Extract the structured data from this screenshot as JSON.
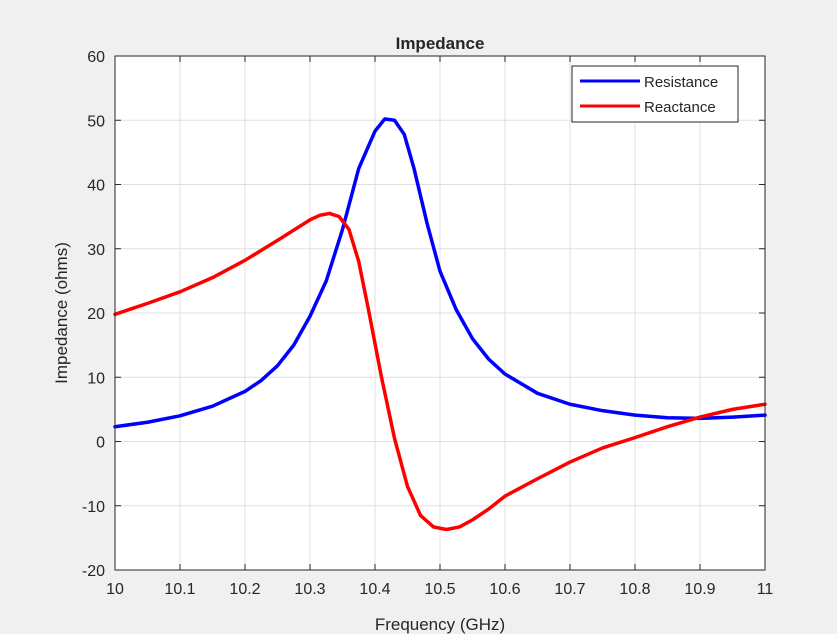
{
  "figure": {
    "background": "#f0f0f0"
  },
  "chart_data": {
    "type": "line",
    "title": "Impedance",
    "xlabel": "Frequency (GHz)",
    "ylabel": "Impedance (ohms)",
    "xlim": [
      10,
      11
    ],
    "ylim": [
      -20,
      60
    ],
    "xticks": [
      10,
      10.1,
      10.2,
      10.3,
      10.4,
      10.5,
      10.6,
      10.7,
      10.8,
      10.9,
      11
    ],
    "xtick_labels": [
      "10",
      "10.1",
      "10.2",
      "10.3",
      "10.4",
      "10.5",
      "10.6",
      "10.7",
      "10.8",
      "10.9",
      "11"
    ],
    "yticks": [
      -20,
      -10,
      0,
      10,
      20,
      30,
      40,
      50,
      60
    ],
    "ytick_labels": [
      "-20",
      "-10",
      "0",
      "10",
      "20",
      "30",
      "40",
      "50",
      "60"
    ],
    "grid": true,
    "legend_position": "top-right",
    "series": [
      {
        "name": "Resistance",
        "color": "#0000ff",
        "x": [
          10,
          10.05,
          10.1,
          10.15,
          10.2,
          10.225,
          10.25,
          10.275,
          10.3,
          10.325,
          10.35,
          10.375,
          10.4,
          10.415,
          10.43,
          10.445,
          10.46,
          10.48,
          10.5,
          10.525,
          10.55,
          10.575,
          10.6,
          10.65,
          10.7,
          10.75,
          10.8,
          10.85,
          10.9,
          10.95,
          11
        ],
        "y": [
          2.3,
          3.0,
          4.0,
          5.5,
          7.8,
          9.5,
          11.8,
          15.0,
          19.5,
          25.0,
          33.0,
          42.5,
          48.3,
          50.2,
          50.0,
          47.8,
          42.5,
          34.0,
          26.5,
          20.5,
          16.0,
          12.8,
          10.5,
          7.5,
          5.8,
          4.8,
          4.1,
          3.7,
          3.6,
          3.8,
          4.1
        ]
      },
      {
        "name": "Reactance",
        "color": "#ff0000",
        "x": [
          10,
          10.05,
          10.1,
          10.15,
          10.2,
          10.25,
          10.3,
          10.315,
          10.33,
          10.345,
          10.36,
          10.375,
          10.39,
          10.41,
          10.43,
          10.45,
          10.47,
          10.49,
          10.51,
          10.53,
          10.55,
          10.575,
          10.6,
          10.65,
          10.7,
          10.75,
          10.8,
          10.85,
          10.9,
          10.95,
          11
        ],
        "y": [
          19.8,
          21.5,
          23.3,
          25.5,
          28.2,
          31.3,
          34.5,
          35.2,
          35.5,
          35.0,
          33.0,
          28.0,
          20.5,
          10.0,
          0.5,
          -7.0,
          -11.5,
          -13.3,
          -13.7,
          -13.3,
          -12.2,
          -10.5,
          -8.5,
          -5.8,
          -3.2,
          -1.0,
          0.6,
          2.3,
          3.8,
          5.0,
          5.8
        ]
      }
    ]
  }
}
